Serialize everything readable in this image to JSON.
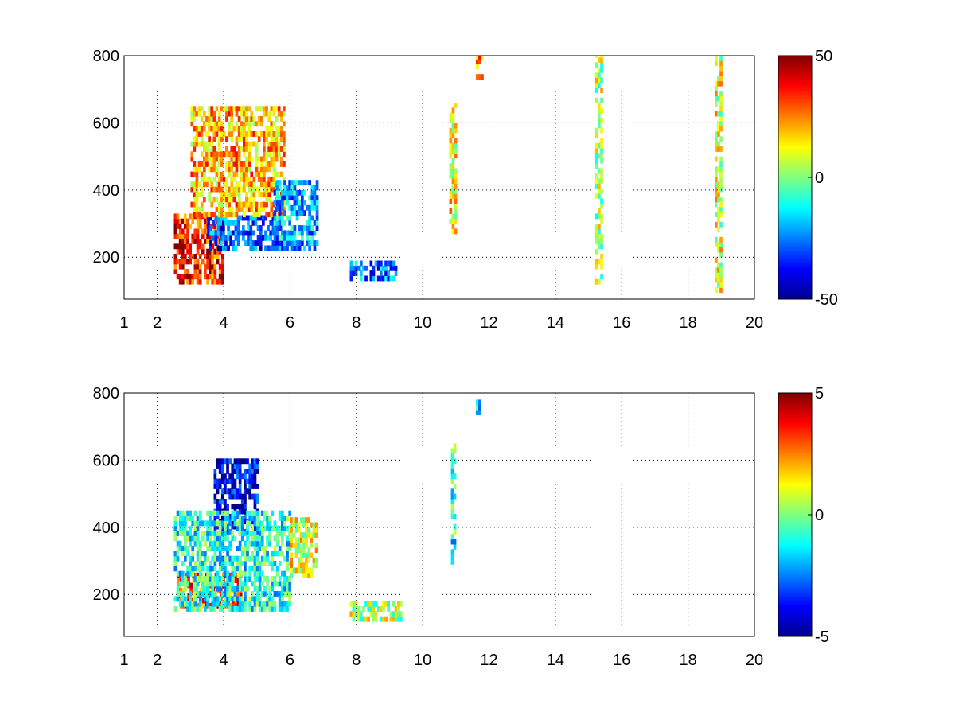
{
  "chart_data": [
    {
      "type": "heatmap",
      "title": "",
      "xlabel": "",
      "ylabel": "",
      "xlim": [
        1,
        20
      ],
      "ylim": [
        75,
        800
      ],
      "grid": true,
      "grid_style": "dotted",
      "x_ticks": [
        1,
        2,
        4,
        6,
        8,
        10,
        12,
        14,
        16,
        18,
        20
      ],
      "x_tick_labels": [
        "1",
        "2",
        "4",
        "6",
        "8",
        "10",
        "12",
        "14",
        "16",
        "18",
        "20"
      ],
      "y_ticks": [
        200,
        400,
        600,
        800
      ],
      "y_tick_labels": [
        "200",
        "400",
        "600",
        "800"
      ],
      "colormap": "jet",
      "color_range": [
        -50,
        50
      ],
      "colorbar_ticks": [
        50,
        0,
        -50
      ],
      "colorbar_tick_labels": [
        "50",
        "0",
        "-50"
      ],
      "regions": [
        {
          "x": [
            2.5,
            4.0
          ],
          "y": [
            120,
            320
          ],
          "value": 35
        },
        {
          "x": [
            3.5,
            5.8
          ],
          "y": [
            220,
            320
          ],
          "value": -30
        },
        {
          "x": [
            3.0,
            5.8
          ],
          "y": [
            320,
            650
          ],
          "value": 20
        },
        {
          "x": [
            5.5,
            6.8
          ],
          "y": [
            220,
            420
          ],
          "value": -20
        },
        {
          "x": [
            7.8,
            9.2
          ],
          "y": [
            130,
            180
          ],
          "value": -25
        },
        {
          "x": [
            10.8,
            11.0
          ],
          "y": [
            270,
            660
          ],
          "value": 12
        },
        {
          "x": [
            11.6,
            11.8
          ],
          "y": [
            730,
            800
          ],
          "value": 25
        },
        {
          "x": [
            15.2,
            15.4
          ],
          "y": [
            120,
            800
          ],
          "value": 5
        },
        {
          "x": [
            18.8,
            19.0
          ],
          "y": [
            80,
            800
          ],
          "value": 10
        }
      ]
    },
    {
      "type": "heatmap",
      "title": "",
      "xlabel": "",
      "ylabel": "",
      "xlim": [
        1,
        20
      ],
      "ylim": [
        75,
        800
      ],
      "grid": true,
      "grid_style": "dotted",
      "x_ticks": [
        1,
        2,
        4,
        6,
        8,
        10,
        12,
        14,
        16,
        18,
        20
      ],
      "x_tick_labels": [
        "1",
        "2",
        "4",
        "6",
        "8",
        "10",
        "12",
        "14",
        "16",
        "18",
        "20"
      ],
      "y_ticks": [
        200,
        400,
        600,
        800
      ],
      "y_tick_labels": [
        "200",
        "400",
        "600",
        "800"
      ],
      "colormap": "jet",
      "color_range": [
        -5,
        5
      ],
      "colorbar_ticks": [
        5,
        0,
        -5
      ],
      "colorbar_tick_labels": [
        "5",
        "0",
        "-5"
      ],
      "regions": [
        {
          "x": [
            3.7,
            5.0
          ],
          "y": [
            380,
            600
          ],
          "value": -4
        },
        {
          "x": [
            2.6,
            4.5
          ],
          "y": [
            160,
            260
          ],
          "value": 3
        },
        {
          "x": [
            2.5,
            6.0
          ],
          "y": [
            150,
            450
          ],
          "value": -1
        },
        {
          "x": [
            6.0,
            6.8
          ],
          "y": [
            250,
            420
          ],
          "value": 1
        },
        {
          "x": [
            7.8,
            9.3
          ],
          "y": [
            120,
            180
          ],
          "value": 0.5
        },
        {
          "x": [
            10.85,
            10.95
          ],
          "y": [
            290,
            650
          ],
          "value": -1
        },
        {
          "x": [
            11.6,
            11.7
          ],
          "y": [
            720,
            790
          ],
          "value": -1.5
        }
      ]
    }
  ]
}
